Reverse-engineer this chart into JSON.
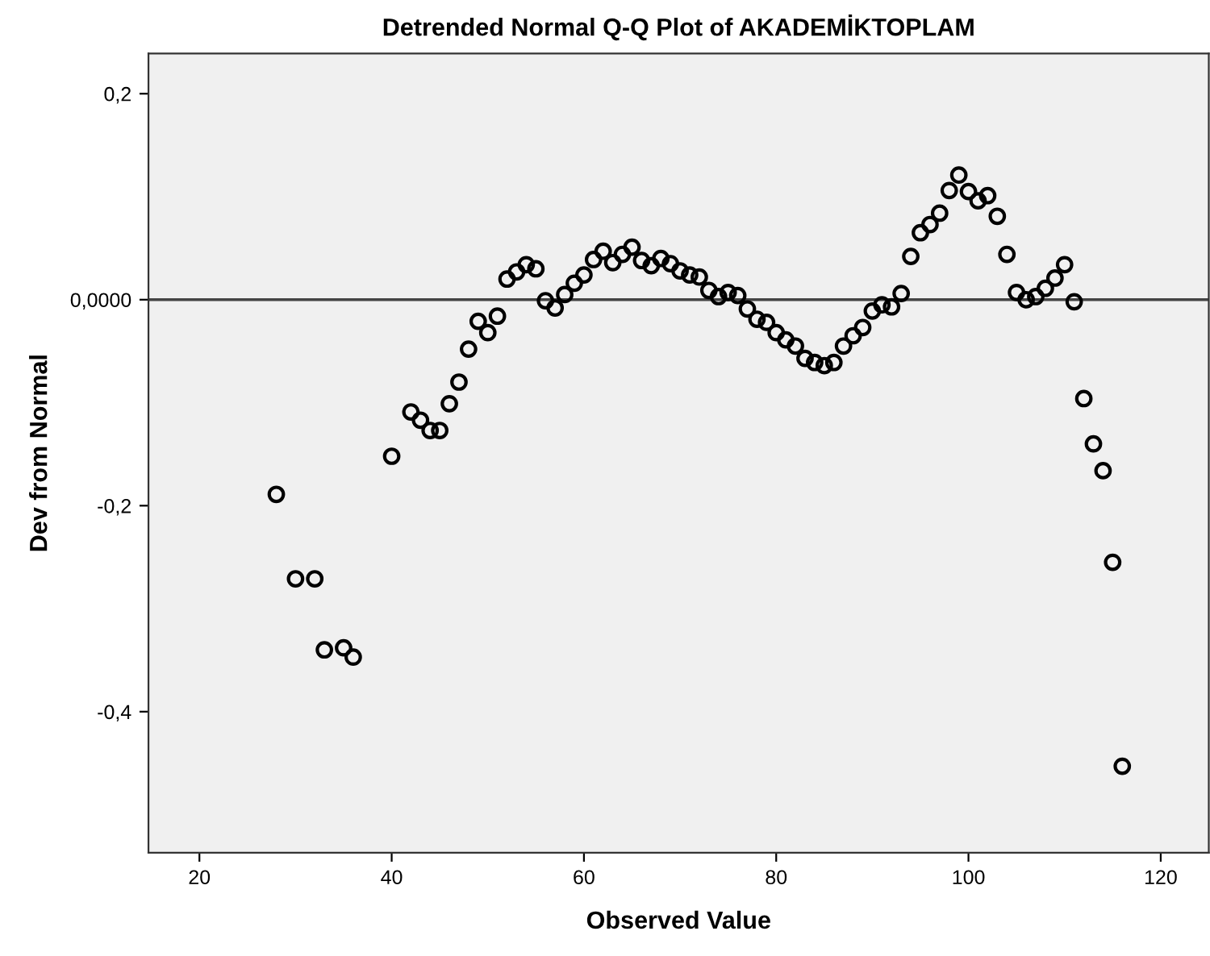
{
  "chart_data": {
    "type": "scatter",
    "title": "Detrended Normal Q-Q Plot of AKADEMİKTOPLAM",
    "xlabel": "Observed Value",
    "ylabel": "Dev from Normal",
    "x": [
      28,
      30,
      32,
      33,
      35,
      36,
      40,
      42,
      43,
      44,
      45,
      46,
      47,
      48,
      49,
      50,
      51,
      52,
      53,
      54,
      55,
      56,
      57,
      58,
      59,
      60,
      61,
      62,
      63,
      64,
      65,
      66,
      67,
      68,
      69,
      70,
      71,
      72,
      73,
      74,
      75,
      76,
      77,
      78,
      79,
      80,
      81,
      82,
      83,
      84,
      85,
      86,
      87,
      88,
      89,
      90,
      91,
      92,
      93,
      94,
      95,
      96,
      97,
      98,
      99,
      100,
      101,
      102,
      103,
      104,
      105,
      106,
      107,
      108,
      109,
      110,
      111,
      112,
      113,
      114,
      115,
      116
    ],
    "series": [
      {
        "color": "#000000",
        "values": [
          -0.189,
          -0.271,
          -0.271,
          -0.34,
          -0.338,
          -0.347,
          -0.152,
          -0.109,
          -0.117,
          -0.127,
          -0.127,
          -0.101,
          -0.08,
          -0.048,
          -0.021,
          -0.032,
          -0.016,
          0.02,
          0.027,
          0.034,
          0.03,
          -0.001,
          -0.008,
          0.005,
          0.016,
          0.024,
          0.039,
          0.047,
          0.036,
          0.044,
          0.051,
          0.038,
          0.033,
          0.04,
          0.035,
          0.028,
          0.024,
          0.022,
          0.009,
          0.003,
          0.007,
          0.004,
          -0.009,
          -0.019,
          -0.022,
          -0.032,
          -0.039,
          -0.045,
          -0.057,
          -0.061,
          -0.064,
          -0.061,
          -0.045,
          -0.035,
          -0.027,
          -0.011,
          -0.005,
          -0.007,
          0.006,
          0.042,
          0.065,
          0.073,
          0.084,
          0.106,
          0.121,
          0.105,
          0.096,
          0.101,
          0.081,
          0.044,
          0.007,
          0.0,
          0.003,
          0.011,
          0.021,
          0.034,
          -0.002,
          -0.096,
          -0.14,
          -0.166,
          -0.255,
          -0.453
        ]
      }
    ],
    "xlim": [
      14.7,
      125
    ],
    "ylim": [
      -0.537,
      0.239
    ],
    "xticks": [
      20,
      40,
      60,
      80,
      100,
      120
    ],
    "yticks": [
      {
        "value": 0.2,
        "label": "0,2"
      },
      {
        "value": 0,
        "label": "0,0000"
      },
      {
        "value": -0.2,
        "label": "-0,2"
      },
      {
        "value": -0.4,
        "label": "-0,4"
      }
    ],
    "ref_lines": [
      {
        "axis": "y",
        "value": 0,
        "color": "#444444",
        "line_style": "solid"
      }
    ],
    "marker": "circle",
    "grid": false
  }
}
